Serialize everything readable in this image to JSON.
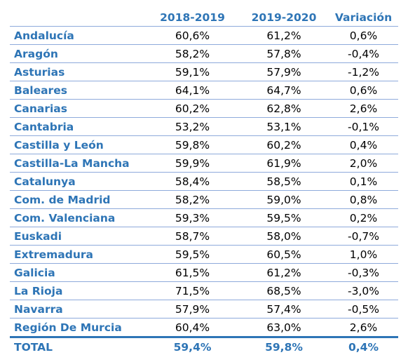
{
  "header": {
    "col_region": "",
    "col_2018_2019": "2018-2019",
    "col_2019_2020": "2019-2020",
    "col_variacion": "Variación"
  },
  "rows": [
    {
      "region": "Andalucía",
      "v2018_2019": "60,6%",
      "v2019_2020": "61,2%",
      "variacion": "0,6%"
    },
    {
      "region": "Aragón",
      "v2018_2019": "58,2%",
      "v2019_2020": "57,8%",
      "variacion": "-0,4%"
    },
    {
      "region": "Asturias",
      "v2018_2019": "59,1%",
      "v2019_2020": "57,9%",
      "variacion": "-1,2%"
    },
    {
      "region": "Baleares",
      "v2018_2019": "64,1%",
      "v2019_2020": "64,7%",
      "variacion": "0,6%"
    },
    {
      "region": "Canarias",
      "v2018_2019": "60,2%",
      "v2019_2020": "62,8%",
      "variacion": "2,6%"
    },
    {
      "region": "Cantabria",
      "v2018_2019": "53,2%",
      "v2019_2020": "53,1%",
      "variacion": "-0,1%"
    },
    {
      "region": "Castilla y León",
      "v2018_2019": "59,8%",
      "v2019_2020": "60,2%",
      "variacion": "0,4%"
    },
    {
      "region": "Castilla-La Mancha",
      "v2018_2019": "59,9%",
      "v2019_2020": "61,9%",
      "variacion": "2,0%"
    },
    {
      "region": "Catalunya",
      "v2018_2019": "58,4%",
      "v2019_2020": "58,5%",
      "variacion": "0,1%"
    },
    {
      "region": "Com. de Madrid",
      "v2018_2019": "58,2%",
      "v2019_2020": "59,0%",
      "variacion": "0,8%"
    },
    {
      "region": "Com. Valenciana",
      "v2018_2019": "59,3%",
      "v2019_2020": "59,5%",
      "variacion": "0,2%"
    },
    {
      "region": "Euskadi",
      "v2018_2019": "58,7%",
      "v2019_2020": "58,0%",
      "variacion": "-0,7%"
    },
    {
      "region": "Extremadura",
      "v2018_2019": "59,5%",
      "v2019_2020": "60,5%",
      "variacion": "1,0%"
    },
    {
      "region": "Galicia",
      "v2018_2019": "61,5%",
      "v2019_2020": "61,2%",
      "variacion": "-0,3%"
    },
    {
      "region": "La Rioja",
      "v2018_2019": "71,5%",
      "v2019_2020": "68,5%",
      "variacion": "-3,0%"
    },
    {
      "region": "Navarra",
      "v2018_2019": "57,9%",
      "v2019_2020": "57,4%",
      "variacion": "-0,5%"
    },
    {
      "region": "Región De Murcia",
      "v2018_2019": "60,4%",
      "v2019_2020": "63,0%",
      "variacion": "2,6%"
    }
  ],
  "total": {
    "region": "TOTAL",
    "v2018_2019": "59,4%",
    "v2019_2020": "59,8%",
    "variacion": "0,4%"
  },
  "colors": {
    "accent": "#2e75b6",
    "rule": "#8eaadb",
    "text": "#000000"
  }
}
